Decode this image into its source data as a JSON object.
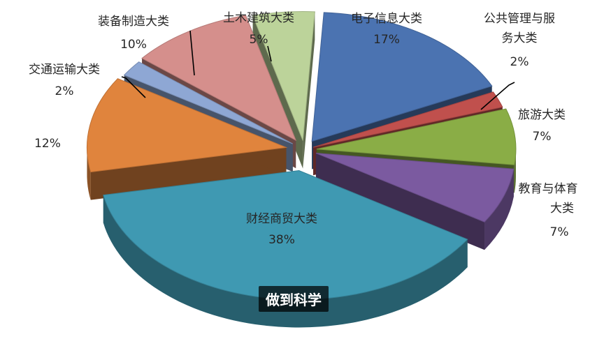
{
  "caption": "做到科学",
  "chart_data": {
    "type": "pie",
    "style": "3d-exploded",
    "slices": [
      {
        "label": "电子信息大类",
        "percent_label": "17%",
        "value": 17,
        "color": "#4b73b1"
      },
      {
        "label": "公共管理与服务大类",
        "percent_label": "2%",
        "value": 2,
        "color": "#c0504d"
      },
      {
        "label": "旅游大类",
        "percent_label": "7%",
        "value": 7,
        "color": "#8aad46"
      },
      {
        "label": "教育与体育大类",
        "percent_label": "7%",
        "value": 7,
        "color": "#7b5aa0"
      },
      {
        "label": "财经商贸大类",
        "percent_label": "38%",
        "value": 38,
        "color": "#3f99b2"
      },
      {
        "label": "",
        "percent_label": "12%",
        "value": 12,
        "color": "#e0843d"
      },
      {
        "label": "交通运输大类",
        "percent_label": "2%",
        "value": 2,
        "color": "#8ea7d4"
      },
      {
        "label": "装备制造大类",
        "percent_label": "10%",
        "value": 10,
        "color": "#d58f8c"
      },
      {
        "label": "土木建筑大类",
        "percent_label": "5%",
        "value": 5,
        "color": "#bcd39a"
      }
    ]
  }
}
